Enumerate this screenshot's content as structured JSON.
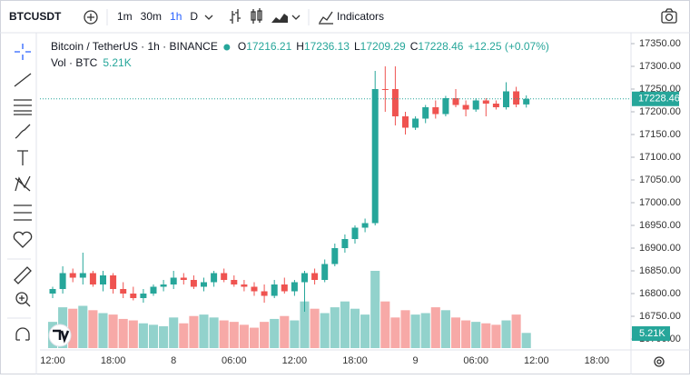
{
  "toolbar": {
    "symbol": "BTCUSDT",
    "intervals": [
      "1m",
      "30m",
      "1h",
      "D"
    ],
    "active_interval": "1h",
    "indicators": "Indicators"
  },
  "chart_data": {
    "type": "candlestick",
    "title": "Bitcoin / TetherUS · 1h · BINANCE",
    "ohlc_prefixes": [
      "O",
      "H",
      "L",
      "C"
    ],
    "change_label": "+12.25 (+0.07%)",
    "volume_title": "Vol · BTC",
    "volume_last_label": "5.21K",
    "up_color": "#26a69a",
    "down_color": "#ef5350",
    "volume_up_color": "#92d2cc",
    "volume_down_color": "#f7a9a7",
    "open": [
      16800,
      16810,
      16845,
      16835,
      16845,
      16820,
      16840,
      16810,
      16800,
      16790,
      16800,
      16815,
      16820,
      16835,
      16830,
      16815,
      16825,
      16845,
      16830,
      16820,
      16815,
      16805,
      16795,
      16820,
      16805,
      16825,
      16845,
      16830,
      16865,
      16900,
      16920,
      16945,
      16955,
      17250,
      17250,
      17190,
      17165,
      17185,
      17210,
      17195,
      17230,
      17215,
      17205,
      17225,
      17218,
      17210,
      17245,
      17216.21
    ],
    "high": [
      16815,
      16860,
      16855,
      16890,
      16850,
      16850,
      16845,
      16825,
      16815,
      16810,
      16820,
      16830,
      16850,
      16845,
      16840,
      16835,
      16850,
      16855,
      16840,
      16830,
      16825,
      16820,
      16830,
      16835,
      16830,
      16850,
      16855,
      16875,
      16910,
      16930,
      16950,
      16965,
      17290,
      17300,
      17300,
      17200,
      17190,
      17215,
      17225,
      17235,
      17250,
      17225,
      17230,
      17230,
      17225,
      17265,
      17255,
      17236.13
    ],
    "low": [
      16790,
      16800,
      16825,
      16820,
      16815,
      16805,
      16800,
      16790,
      16785,
      16780,
      16795,
      16805,
      16810,
      16820,
      16810,
      16805,
      16815,
      16825,
      16815,
      16805,
      16795,
      16780,
      16790,
      16800,
      16795,
      16760,
      16820,
      16825,
      16860,
      16890,
      16910,
      16935,
      16950,
      17200,
      17170,
      17150,
      17160,
      17175,
      17185,
      17190,
      17210,
      17190,
      17200,
      17190,
      17205,
      17205,
      17210,
      17209.29
    ],
    "close": [
      16810,
      16845,
      16835,
      16845,
      16820,
      16840,
      16810,
      16800,
      16790,
      16800,
      16815,
      16820,
      16835,
      16830,
      16815,
      16825,
      16845,
      16830,
      16820,
      16815,
      16805,
      16795,
      16820,
      16805,
      16825,
      16845,
      16830,
      16865,
      16900,
      16920,
      16945,
      16955,
      17250,
      17248,
      17190,
      17165,
      17185,
      17210,
      17195,
      17230,
      17215,
      17205,
      17225,
      17218,
      17210,
      17245,
      17216,
      17228.46
    ],
    "volume": [
      9000,
      14000,
      13500,
      14500,
      13000,
      12000,
      11500,
      10000,
      9500,
      8500,
      8000,
      7500,
      10500,
      8500,
      11000,
      11500,
      10500,
      9500,
      9000,
      8000,
      7000,
      9000,
      10000,
      11000,
      9500,
      16000,
      13500,
      12000,
      14000,
      16000,
      13500,
      11500,
      26500,
      16000,
      10500,
      13000,
      11500,
      12000,
      14000,
      13000,
      10500,
      9500,
      9000,
      8500,
      8000,
      9500,
      11500,
      5210
    ],
    "ylim": [
      16676,
      17366
    ],
    "yticks": [
      {
        "value": 17350,
        "label": "17350.00"
      },
      {
        "value": 17300,
        "label": "17300.00"
      },
      {
        "value": 17250,
        "label": "17250.00"
      },
      {
        "value": 17200,
        "label": "17200.00"
      },
      {
        "value": 17150,
        "label": "17150.00"
      },
      {
        "value": 17100,
        "label": "17100.00"
      },
      {
        "value": 17050,
        "label": "17050.00"
      },
      {
        "value": 17000,
        "label": "17000.00"
      },
      {
        "value": 16950,
        "label": "16950.00"
      },
      {
        "value": 16900,
        "label": "16900.00"
      },
      {
        "value": 16850,
        "label": "16850.00"
      },
      {
        "value": 16800,
        "label": "16800.00"
      },
      {
        "value": 16750,
        "label": "16750.00"
      },
      {
        "value": 16700,
        "label": "16700.00"
      }
    ],
    "xtick_labels": [
      "12:00",
      "18:00",
      "8",
      "06:00",
      "12:00",
      "18:00",
      "9",
      "06:00",
      "12:00",
      "18:00"
    ]
  }
}
